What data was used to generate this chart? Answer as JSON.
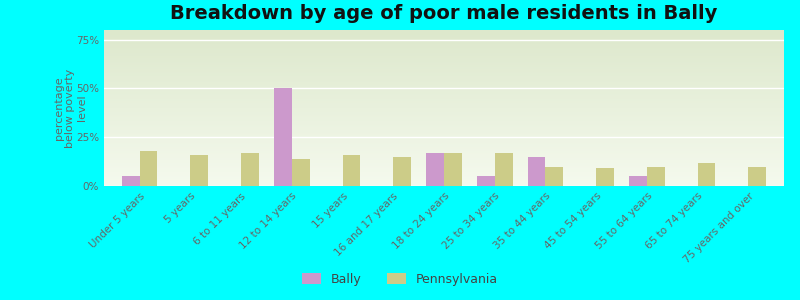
{
  "title": "Breakdown by age of poor male residents in Bally",
  "ylabel": "percentage\nbelow poverty\nlevel",
  "categories": [
    "Under 5 years",
    "5 years",
    "6 to 11 years",
    "12 to 14 years",
    "15 years",
    "16 and 17 years",
    "18 to 24 years",
    "25 to 34 years",
    "35 to 44 years",
    "45 to 54 years",
    "55 to 64 years",
    "65 to 74 years",
    "75 years and over"
  ],
  "bally_values": [
    5,
    0,
    0,
    50,
    0,
    0,
    17,
    5,
    15,
    0,
    5,
    0,
    0
  ],
  "pennsylvania_values": [
    18,
    16,
    17,
    14,
    16,
    15,
    17,
    17,
    10,
    9,
    10,
    12,
    10
  ],
  "bally_color": "#cc99cc",
  "pennsylvania_color": "#cccc88",
  "bg_color": "#00ffff",
  "plot_bg_top": "#dde8cc",
  "plot_bg_bottom": "#f5faee",
  "ylim": [
    0,
    80
  ],
  "yticks": [
    0,
    25,
    50,
    75
  ],
  "ytick_labels": [
    "0%",
    "25%",
    "50%",
    "75%"
  ],
  "bar_width": 0.35,
  "title_fontsize": 14,
  "tick_fontsize": 7.5,
  "ylabel_fontsize": 8,
  "legend_fontsize": 9
}
